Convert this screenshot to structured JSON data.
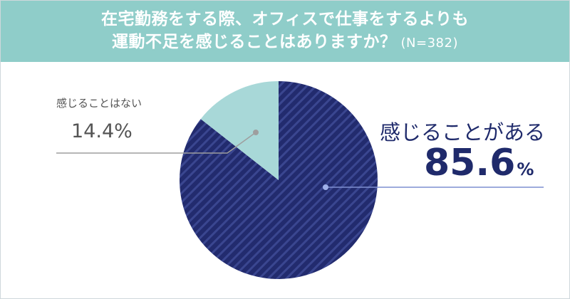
{
  "header": {
    "title_line1": "在宅勤務をする際、オフィスで仕事をするよりも",
    "title_line2": "運動不足を感じることはありますか？",
    "note": "(N=382)"
  },
  "colors": {
    "header_bg": "#8fcdc9",
    "major_slice": "#222b6e",
    "major_slice_stripe": "#3a4690",
    "minor_slice": "#a8d8d8",
    "major_text": "#1f2a6b",
    "minor_text": "#555555"
  },
  "chart_data": {
    "type": "pie",
    "title": "在宅勤務をする際、オフィスで仕事をするよりも運動不足を感じることはありますか？",
    "n": "(N=382)",
    "slices": [
      {
        "label": "感じることがある",
        "value": 85.6,
        "value_text": "85.6",
        "unit": "%",
        "color": "#222b6e"
      },
      {
        "label": "感じることはない",
        "value": 14.4,
        "value_text": "14.4%",
        "color": "#a8d8d8"
      }
    ]
  }
}
